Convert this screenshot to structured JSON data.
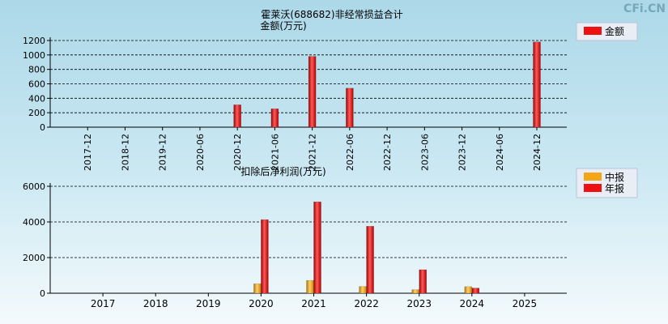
{
  "brand": "CFi.CN",
  "chart_data": [
    {
      "type": "bar",
      "title": "霍莱沃(688682)非经常损益合计",
      "ylabel": "金额(万元)",
      "ylim": [
        0,
        1200
      ],
      "yticks": [
        "0",
        "200",
        "400",
        "600",
        "800",
        "1000",
        "1200"
      ],
      "grid": true,
      "legend_position": "top-right",
      "categories": [
        "2017-12",
        "2018-12",
        "2019-12",
        "2020-06",
        "2020-12",
        "2021-06",
        "2021-12",
        "2022-06",
        "2022-12",
        "2023-06",
        "2023-12",
        "2024-06",
        "2024-12"
      ],
      "series": [
        {
          "name": "金额",
          "color": "#ee1111",
          "values": [
            null,
            null,
            null,
            null,
            310,
            255,
            980,
            540,
            null,
            null,
            null,
            null,
            1180
          ]
        }
      ]
    },
    {
      "type": "bar",
      "title": "扣除后净利润(万元)",
      "ylim": [
        0,
        6000
      ],
      "yticks": [
        "0",
        "2000",
        "4000",
        "6000"
      ],
      "grid": true,
      "legend_position": "top-right",
      "categories": [
        "2017",
        "2018",
        "2019",
        "2020",
        "2021",
        "2022",
        "2023",
        "2024",
        "2025"
      ],
      "series": [
        {
          "name": "中报",
          "color": "#f4a614",
          "values": [
            null,
            null,
            null,
            530,
            720,
            380,
            200,
            370,
            null
          ]
        },
        {
          "name": "年报",
          "color": "#ee1111",
          "values": [
            null,
            null,
            null,
            4130,
            5130,
            3760,
            1320,
            290,
            null
          ]
        }
      ]
    }
  ]
}
